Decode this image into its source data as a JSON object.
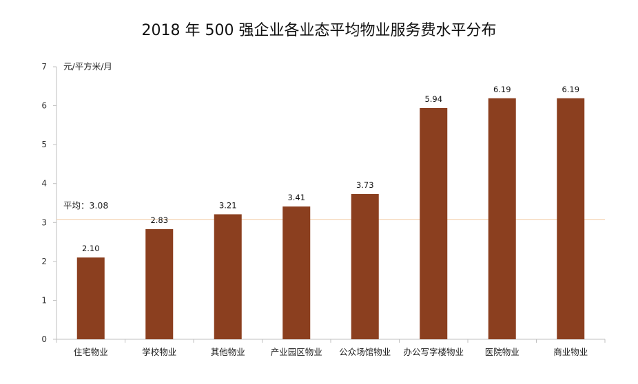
{
  "chart_data": {
    "type": "bar",
    "title": "2018 年 500 强企业各业态平均物业服务费水平分布",
    "ylabel": "元/平方米/月",
    "categories": [
      "住宅物业",
      "学校物业",
      "其他物业",
      "产业园区物业",
      "公众场馆物业",
      "办公写字楼物业",
      "医院物业",
      "商业物业"
    ],
    "values": [
      2.1,
      2.83,
      3.21,
      3.41,
      3.73,
      5.94,
      6.19,
      6.19
    ],
    "data_labels": [
      "2.10",
      "2.83",
      "3.21",
      "3.41",
      "3.73",
      "5.94",
      "6.19",
      "6.19"
    ],
    "ylim": [
      0,
      7
    ],
    "yticks": [
      "0",
      "1",
      "2",
      "3",
      "4",
      "5",
      "6",
      "7"
    ],
    "grid": false,
    "average": {
      "value": 3.08,
      "label": "平均：3.08"
    },
    "colors": {
      "bar": "#8B3F1F",
      "average_line": "#F2C9A0",
      "axis": "#BFBFBF"
    }
  }
}
